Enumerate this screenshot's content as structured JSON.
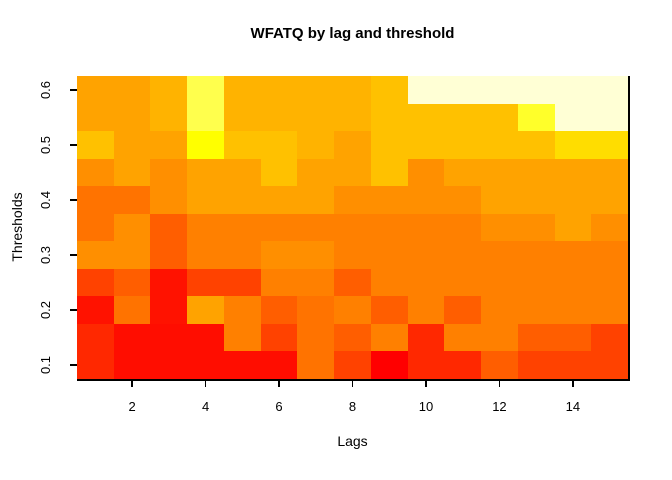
{
  "figure": {
    "background": "#FFFFFF",
    "border_color": "#000000"
  },
  "chart_data": {
    "type": "heatmap",
    "title": "WFATQ by lag and threshold",
    "xlabel": "Lags",
    "ylabel": "Thresholds",
    "x_values": [
      1,
      2,
      3,
      4,
      5,
      6,
      7,
      8,
      9,
      10,
      11,
      12,
      13,
      14,
      15
    ],
    "x_ticks": [
      2,
      4,
      6,
      8,
      10,
      12,
      14
    ],
    "y_ticks": [
      0.1,
      0.2,
      0.3,
      0.4,
      0.5,
      0.6
    ],
    "x_range": [
      0.5,
      15.5
    ],
    "y_range": [
      0.075,
      0.625
    ],
    "grid": "off",
    "legend": "none",
    "thresholds_top_to_bottom": [
      0.6,
      0.55,
      0.5,
      0.45,
      0.4,
      0.35,
      0.3,
      0.25,
      0.2,
      0.15,
      0.1
    ],
    "palette_low_to_high": [
      "#FF0000",
      "#FF0D00",
      "#FF1200",
      "#FF2800",
      "#FF4200",
      "#FF5E00",
      "#FF7300",
      "#FF8000",
      "#FF8F00",
      "#FFA300",
      "#FFB300",
      "#FFC100",
      "#FFDD00",
      "#FFFF00",
      "#FFFF2A",
      "#FFFF4D",
      "#FFFFD5"
    ],
    "cell_colors": [
      [
        "#FFA300",
        "#FFA300",
        "#FFB300",
        "#FFFF4D",
        "#FFB300",
        "#FFB300",
        "#FFB300",
        "#FFB300",
        "#FFC100",
        "#FFFFD5",
        "#FFFFD5",
        "#FFFFD5",
        "#FFFFD5",
        "#FFFFD5",
        "#FFFFD5"
      ],
      [
        "#FFA300",
        "#FFA300",
        "#FFB300",
        "#FFFF4D",
        "#FFB300",
        "#FFB300",
        "#FFB300",
        "#FFB300",
        "#FFC100",
        "#FFC100",
        "#FFC100",
        "#FFC100",
        "#FFFF2A",
        "#FFFFD5",
        "#FFFFD5"
      ],
      [
        "#FFC100",
        "#FFA300",
        "#FFA300",
        "#FFFF00",
        "#FFC100",
        "#FFC100",
        "#FFB300",
        "#FFA300",
        "#FFC100",
        "#FFC100",
        "#FFC100",
        "#FFC100",
        "#FFC100",
        "#FFDD00",
        "#FFDD00"
      ],
      [
        "#FF8F00",
        "#FFA300",
        "#FF8F00",
        "#FFA300",
        "#FFA300",
        "#FFC100",
        "#FFA300",
        "#FFA300",
        "#FFC100",
        "#FF8F00",
        "#FFA300",
        "#FFA300",
        "#FFA300",
        "#FFA300",
        "#FFA300"
      ],
      [
        "#FF7300",
        "#FF7300",
        "#FF8F00",
        "#FFA300",
        "#FFA300",
        "#FFA300",
        "#FFA300",
        "#FF8F00",
        "#FF8F00",
        "#FF8F00",
        "#FF8F00",
        "#FFA300",
        "#FFA300",
        "#FFA300",
        "#FFA300"
      ],
      [
        "#FF7300",
        "#FF8F00",
        "#FF5E00",
        "#FF8000",
        "#FF8000",
        "#FF8000",
        "#FF8000",
        "#FF8000",
        "#FF8000",
        "#FF8000",
        "#FF8000",
        "#FF8F00",
        "#FF8F00",
        "#FFA300",
        "#FF8F00"
      ],
      [
        "#FF8F00",
        "#FF8F00",
        "#FF5E00",
        "#FF8000",
        "#FF8000",
        "#FF8F00",
        "#FF8F00",
        "#FF8000",
        "#FF8000",
        "#FF8000",
        "#FF8000",
        "#FF8000",
        "#FF8000",
        "#FF8000",
        "#FF8000"
      ],
      [
        "#FF4200",
        "#FF5E00",
        "#FF1200",
        "#FF4200",
        "#FF4200",
        "#FF8000",
        "#FF8000",
        "#FF5E00",
        "#FF8000",
        "#FF8000",
        "#FF8000",
        "#FF8000",
        "#FF8000",
        "#FF8000",
        "#FF8000"
      ],
      [
        "#FF1200",
        "#FF7300",
        "#FF1200",
        "#FFA300",
        "#FF8000",
        "#FF5E00",
        "#FF7300",
        "#FF8000",
        "#FF5E00",
        "#FF8000",
        "#FF5E00",
        "#FF8000",
        "#FF8000",
        "#FF8000",
        "#FF8000"
      ],
      [
        "#FF2800",
        "#FF0D00",
        "#FF0D00",
        "#FF0D00",
        "#FF8000",
        "#FF4200",
        "#FF7300",
        "#FF5E00",
        "#FF8000",
        "#FF2800",
        "#FF8000",
        "#FF8000",
        "#FF5E00",
        "#FF5E00",
        "#FF4200"
      ],
      [
        "#FF2800",
        "#FF0D00",
        "#FF0D00",
        "#FF0D00",
        "#FF0D00",
        "#FF0D00",
        "#FF7300",
        "#FF4200",
        "#FF0000",
        "#FF2800",
        "#FF2800",
        "#FF5E00",
        "#FF4200",
        "#FF4200",
        "#FF4200"
      ]
    ]
  }
}
